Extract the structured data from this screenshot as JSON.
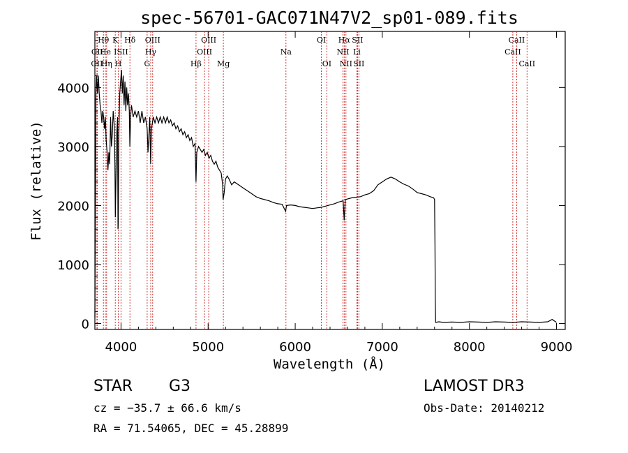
{
  "chart_data": {
    "type": "line",
    "title": "spec-56701-GAC071N47V2_sp01-089.fits",
    "xlabel": "Wavelength (Å)",
    "ylabel": "Flux (relative)",
    "xlim": [
      3700,
      9100
    ],
    "ylim": [
      -100,
      4950
    ],
    "x_ticks": [
      4000,
      5000,
      6000,
      7000,
      8000,
      9000
    ],
    "y_ticks": [
      0,
      1000,
      2000,
      3000,
      4000
    ],
    "grid": false,
    "series": [
      {
        "name": "flux",
        "points": [
          [
            3700,
            100
          ],
          [
            3705,
            1700
          ],
          [
            3712,
            3900
          ],
          [
            3720,
            4200
          ],
          [
            3730,
            3900
          ],
          [
            3740,
            4200
          ],
          [
            3750,
            3900
          ],
          [
            3760,
            3700
          ],
          [
            3770,
            3600
          ],
          [
            3780,
            3400
          ],
          [
            3790,
            3600
          ],
          [
            3800,
            3500
          ],
          [
            3810,
            3300
          ],
          [
            3820,
            3500
          ],
          [
            3830,
            3100
          ],
          [
            3840,
            2900
          ],
          [
            3850,
            2600
          ],
          [
            3860,
            2900
          ],
          [
            3870,
            2700
          ],
          [
            3880,
            3500
          ],
          [
            3890,
            3000
          ],
          [
            3900,
            3200
          ],
          [
            3910,
            3600
          ],
          [
            3920,
            3400
          ],
          [
            3930,
            2700
          ],
          [
            3935,
            1800
          ],
          [
            3940,
            2300
          ],
          [
            3950,
            3200
          ],
          [
            3960,
            3500
          ],
          [
            3965,
            1600
          ],
          [
            3968,
            1700
          ],
          [
            3975,
            3200
          ],
          [
            3985,
            3900
          ],
          [
            3995,
            4100
          ],
          [
            4005,
            4300
          ],
          [
            4015,
            3900
          ],
          [
            4025,
            4200
          ],
          [
            4035,
            3700
          ],
          [
            4045,
            4100
          ],
          [
            4055,
            3600
          ],
          [
            4065,
            4000
          ],
          [
            4075,
            3700
          ],
          [
            4085,
            3900
          ],
          [
            4095,
            3600
          ],
          [
            4101,
            3000
          ],
          [
            4110,
            3500
          ],
          [
            4120,
            3700
          ],
          [
            4140,
            3500
          ],
          [
            4160,
            3600
          ],
          [
            4180,
            3500
          ],
          [
            4200,
            3600
          ],
          [
            4220,
            3400
          ],
          [
            4240,
            3600
          ],
          [
            4260,
            3400
          ],
          [
            4280,
            3500
          ],
          [
            4300,
            3300
          ],
          [
            4310,
            2900
          ],
          [
            4320,
            3200
          ],
          [
            4330,
            3500
          ],
          [
            4340,
            2700
          ],
          [
            4350,
            3300
          ],
          [
            4370,
            3500
          ],
          [
            4390,
            3400
          ],
          [
            4410,
            3500
          ],
          [
            4430,
            3400
          ],
          [
            4450,
            3500
          ],
          [
            4470,
            3400
          ],
          [
            4490,
            3500
          ],
          [
            4510,
            3400
          ],
          [
            4530,
            3500
          ],
          [
            4550,
            3400
          ],
          [
            4570,
            3450
          ],
          [
            4590,
            3350
          ],
          [
            4610,
            3400
          ],
          [
            4630,
            3300
          ],
          [
            4650,
            3350
          ],
          [
            4670,
            3250
          ],
          [
            4690,
            3300
          ],
          [
            4710,
            3200
          ],
          [
            4730,
            3250
          ],
          [
            4750,
            3150
          ],
          [
            4770,
            3200
          ],
          [
            4790,
            3100
          ],
          [
            4810,
            3150
          ],
          [
            4830,
            3000
          ],
          [
            4850,
            3050
          ],
          [
            4861,
            2400
          ],
          [
            4870,
            2900
          ],
          [
            4890,
            3000
          ],
          [
            4910,
            2950
          ],
          [
            4930,
            2900
          ],
          [
            4950,
            2950
          ],
          [
            4970,
            2850
          ],
          [
            4990,
            2900
          ],
          [
            5010,
            2800
          ],
          [
            5030,
            2850
          ],
          [
            5050,
            2750
          ],
          [
            5070,
            2700
          ],
          [
            5090,
            2750
          ],
          [
            5110,
            2650
          ],
          [
            5130,
            2600
          ],
          [
            5150,
            2550
          ],
          [
            5167,
            2350
          ],
          [
            5172,
            2100
          ],
          [
            5183,
            2200
          ],
          [
            5200,
            2450
          ],
          [
            5220,
            2500
          ],
          [
            5240,
            2450
          ],
          [
            5270,
            2350
          ],
          [
            5300,
            2400
          ],
          [
            5350,
            2350
          ],
          [
            5400,
            2300
          ],
          [
            5450,
            2250
          ],
          [
            5500,
            2200
          ],
          [
            5550,
            2150
          ],
          [
            5600,
            2120
          ],
          [
            5650,
            2100
          ],
          [
            5700,
            2080
          ],
          [
            5750,
            2050
          ],
          [
            5800,
            2030
          ],
          [
            5850,
            2020
          ],
          [
            5890,
            1900
          ],
          [
            5900,
            2000
          ],
          [
            5950,
            2010
          ],
          [
            6000,
            2000
          ],
          [
            6050,
            1980
          ],
          [
            6100,
            1970
          ],
          [
            6150,
            1960
          ],
          [
            6200,
            1950
          ],
          [
            6250,
            1960
          ],
          [
            6300,
            1970
          ],
          [
            6350,
            1990
          ],
          [
            6400,
            2010
          ],
          [
            6450,
            2030
          ],
          [
            6500,
            2060
          ],
          [
            6550,
            2080
          ],
          [
            6563,
            1750
          ],
          [
            6575,
            2100
          ],
          [
            6600,
            2110
          ],
          [
            6650,
            2130
          ],
          [
            6700,
            2140
          ],
          [
            6750,
            2150
          ],
          [
            6800,
            2180
          ],
          [
            6850,
            2200
          ],
          [
            6900,
            2250
          ],
          [
            6950,
            2350
          ],
          [
            7000,
            2400
          ],
          [
            7050,
            2450
          ],
          [
            7100,
            2480
          ],
          [
            7150,
            2450
          ],
          [
            7200,
            2400
          ],
          [
            7250,
            2360
          ],
          [
            7300,
            2330
          ],
          [
            7350,
            2280
          ],
          [
            7400,
            2220
          ],
          [
            7450,
            2200
          ],
          [
            7500,
            2180
          ],
          [
            7550,
            2150
          ],
          [
            7590,
            2130
          ],
          [
            7600,
            2100
          ],
          [
            7605,
            1300
          ],
          [
            7608,
            400
          ],
          [
            7612,
            20
          ],
          [
            7650,
            30
          ],
          [
            7700,
            20
          ],
          [
            7800,
            25
          ],
          [
            7900,
            20
          ],
          [
            8000,
            30
          ],
          [
            8100,
            25
          ],
          [
            8200,
            20
          ],
          [
            8300,
            30
          ],
          [
            8400,
            25
          ],
          [
            8500,
            20
          ],
          [
            8600,
            30
          ],
          [
            8700,
            25
          ],
          [
            8800,
            20
          ],
          [
            8900,
            30
          ],
          [
            8950,
            70
          ],
          [
            9000,
            20
          ]
        ]
      }
    ],
    "lines": [
      {
        "name": "CII",
        "wave": 3723,
        "row": 3
      },
      {
        "name": "CII",
        "wave": 3727,
        "row": 2
      },
      {
        "name": "Hθ",
        "wave": 3798,
        "row": 1
      },
      {
        "name": "He",
        "wave": 3820,
        "row": 2
      },
      {
        "name": "Hη",
        "wave": 3835,
        "row": 3
      },
      {
        "name": "K",
        "wave": 3934,
        "row": 1
      },
      {
        "name": "H",
        "wave": 3969,
        "row": 3
      },
      {
        "name": "ISII",
        "wave": 4000,
        "row": 2
      },
      {
        "name": "Hδ",
        "wave": 4102,
        "row": 1
      },
      {
        "name": "Hγ",
        "wave": 4341,
        "row": 2
      },
      {
        "name": "G",
        "wave": 4300,
        "row": 3
      },
      {
        "name": "OIII",
        "wave": 4363,
        "row": 1
      },
      {
        "name": "Hβ",
        "wave": 4861,
        "row": 3
      },
      {
        "name": "OIII",
        "wave": 4959,
        "row": 2
      },
      {
        "name": "OIII",
        "wave": 5007,
        "row": 1
      },
      {
        "name": "Mg",
        "wave": 5175,
        "row": 3
      },
      {
        "name": "Na",
        "wave": 5894,
        "row": 2
      },
      {
        "name": "OI",
        "wave": 6300,
        "row": 1
      },
      {
        "name": "OI",
        "wave": 6363,
        "row": 3
      },
      {
        "name": "NII",
        "wave": 6548,
        "row": 2
      },
      {
        "name": "Hα",
        "wave": 6563,
        "row": 1
      },
      {
        "name": "NII",
        "wave": 6583,
        "row": 3
      },
      {
        "name": "SII",
        "wave": 6716,
        "row": 1
      },
      {
        "name": "Li",
        "wave": 6708,
        "row": 2
      },
      {
        "name": "SII",
        "wave": 6731,
        "row": 3
      },
      {
        "name": "CaII",
        "wave": 8498,
        "row": 2
      },
      {
        "name": "CaII",
        "wave": 8542,
        "row": 1
      },
      {
        "name": "CaII",
        "wave": 8662,
        "row": 3
      }
    ]
  },
  "footer": {
    "class_label": "STAR",
    "subclass": "G3",
    "survey": "LAMOST DR3",
    "redshift": "cz = −35.7 ± 66.6 km/s",
    "obs_date": "Obs-Date: 20140212",
    "coords": "RA =  71.54065, DEC =  45.28899"
  },
  "colors": {
    "line_marker": "#cc2222",
    "spectrum": "#000000"
  }
}
